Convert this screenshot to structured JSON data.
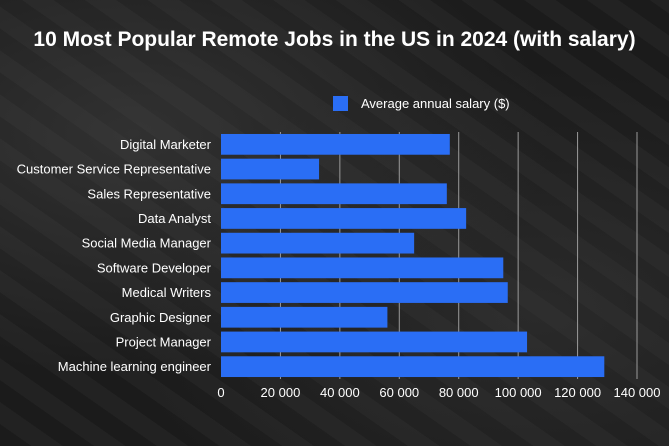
{
  "chart_data": {
    "type": "bar",
    "orientation": "horizontal",
    "title": "10 Most Popular Remote Jobs in the US in 2024 (with salary)",
    "categories": [
      "Digital Marketer",
      "Customer Service Representative",
      "Sales Representative",
      "Data Analyst",
      "Social Media Manager",
      "Software Developer",
      "Medical Writers",
      "Graphic Designer",
      "Project Manager",
      "Machine learning engineer"
    ],
    "series": [
      {
        "name": "Average annual salary ($)",
        "color": "#2a6ef5",
        "values": [
          77000,
          33000,
          76000,
          82500,
          65000,
          95000,
          96500,
          56000,
          103000,
          129000
        ]
      }
    ],
    "xlim": [
      0,
      140000
    ],
    "xticks": [
      0,
      20000,
      40000,
      60000,
      80000,
      100000,
      120000,
      140000
    ],
    "xtick_labels": [
      "0",
      "20 000",
      "40 000",
      "60 000",
      "80 000",
      "100 000",
      "120 000",
      "140 000"
    ],
    "grid": "vertical",
    "legend": "top"
  }
}
